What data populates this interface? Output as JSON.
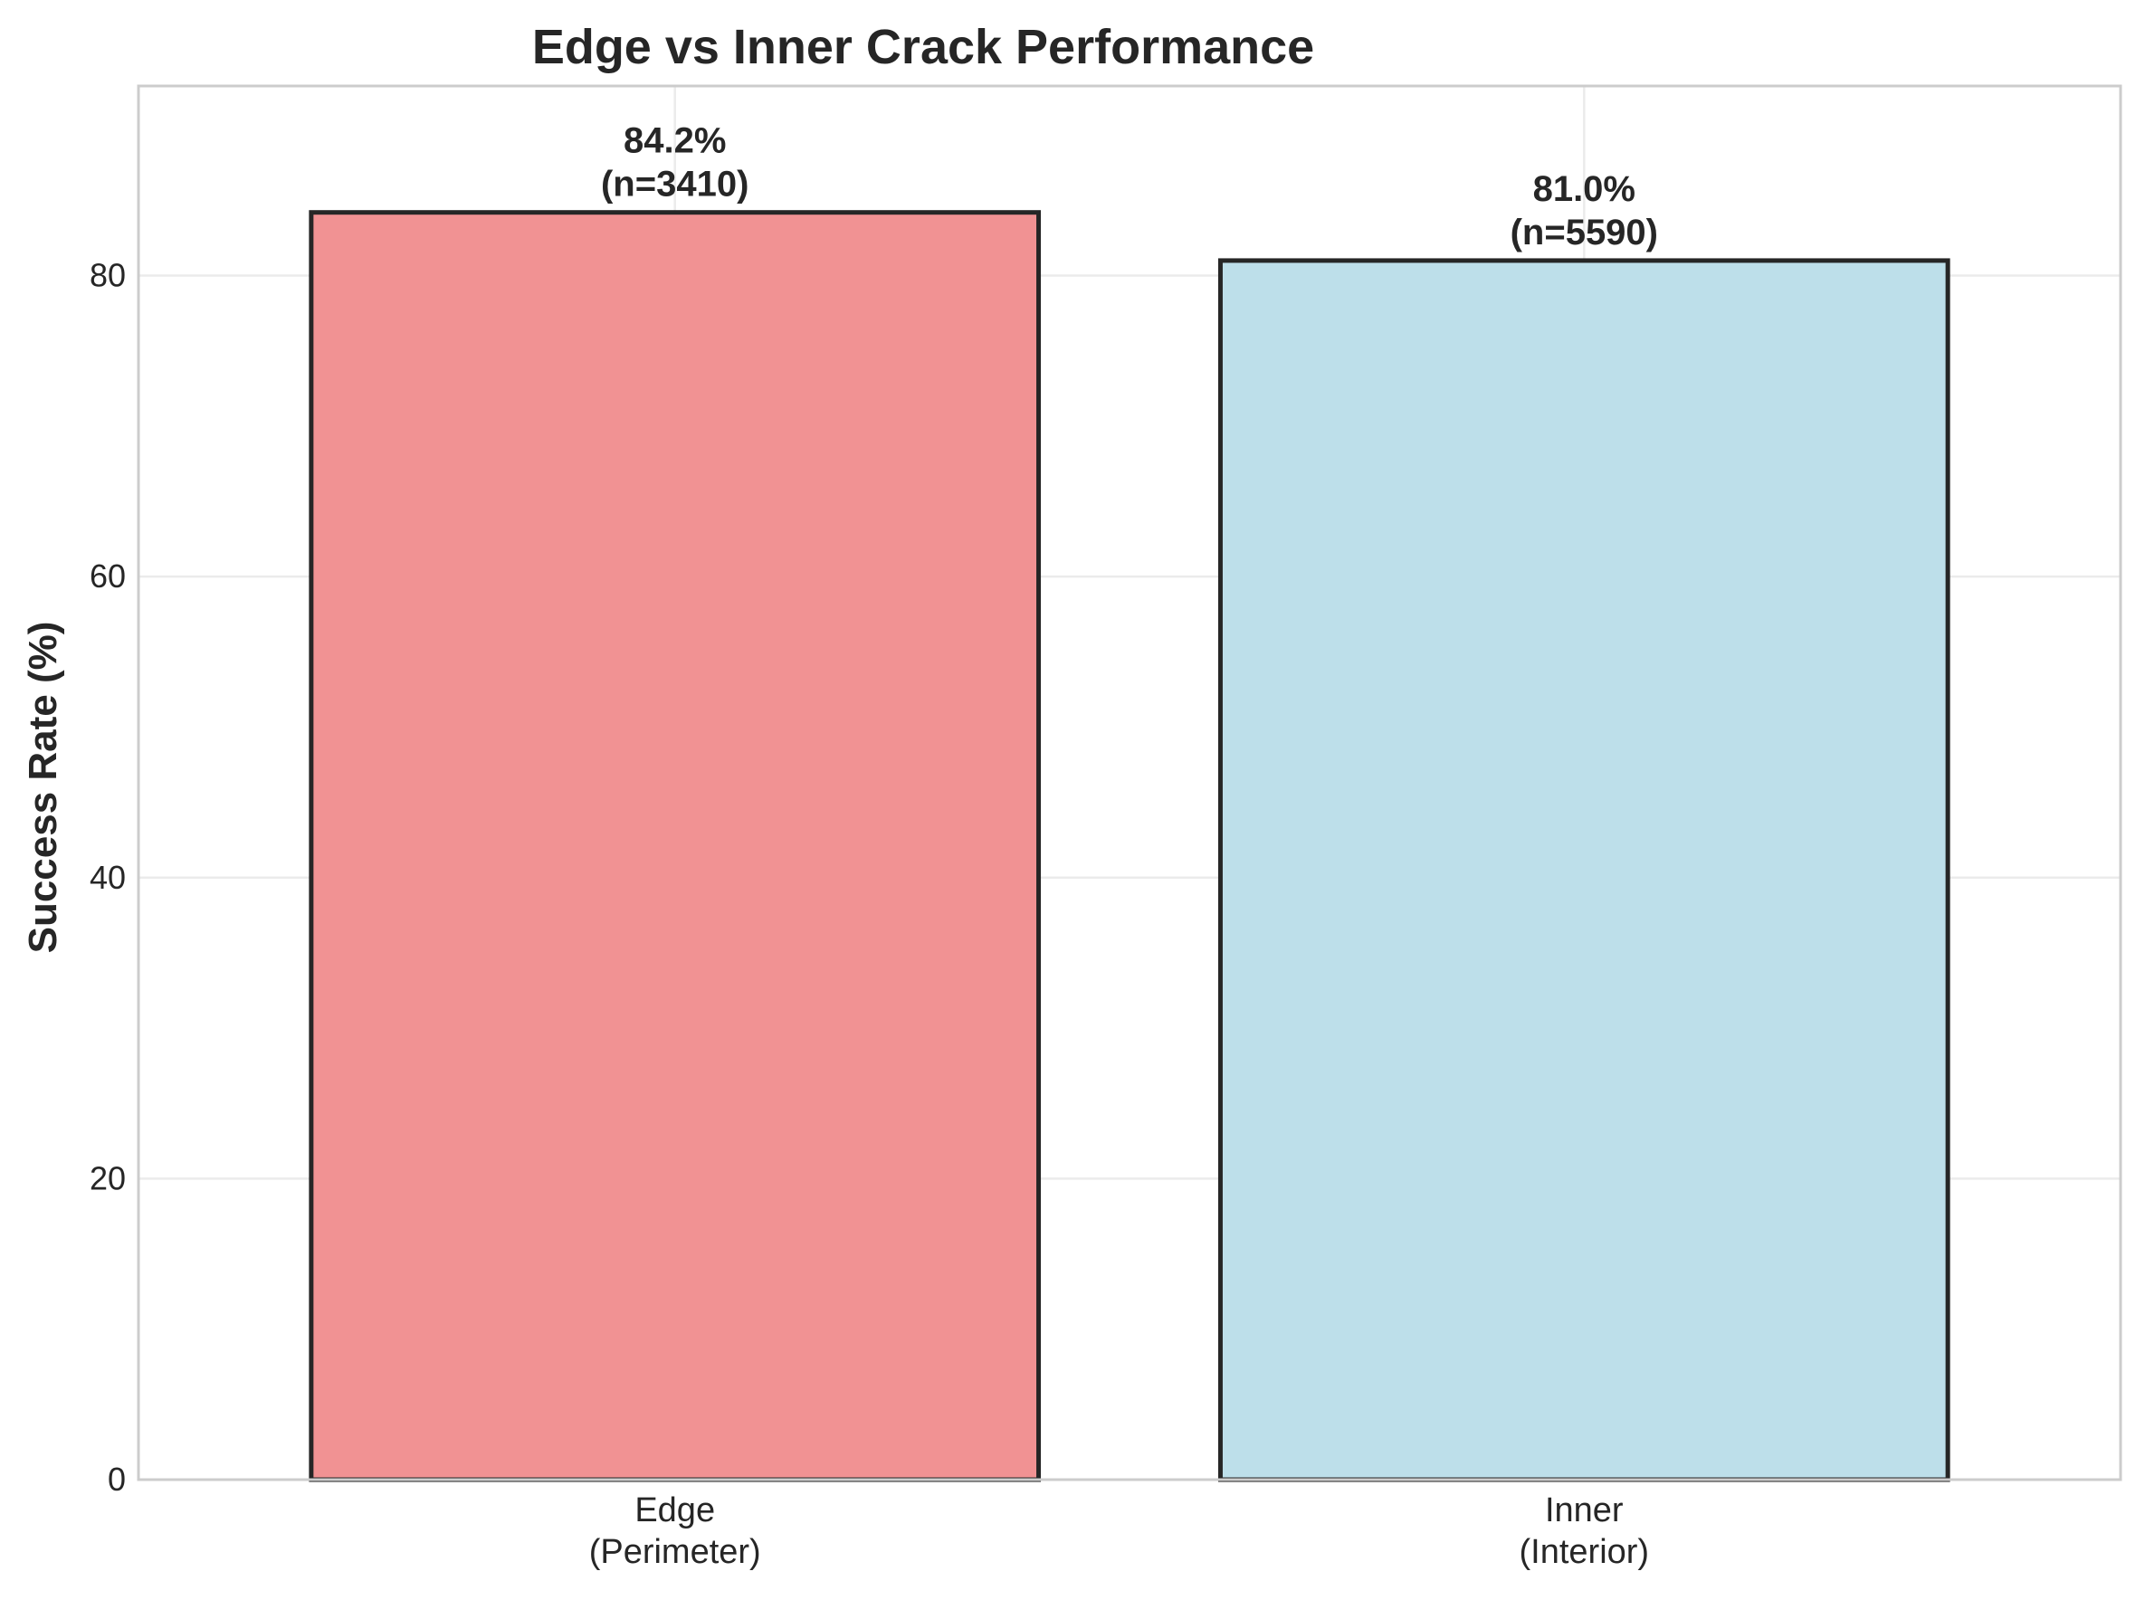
{
  "chart_data": {
    "type": "bar",
    "title": "Edge vs Inner Crack Performance",
    "xlabel": "",
    "ylabel": "Success Rate (%)",
    "ylim": [
      0,
      92.6
    ],
    "yticks": [
      0,
      20,
      40,
      60,
      80
    ],
    "grid": true,
    "categories": [
      [
        "Edge",
        "(Perimeter)"
      ],
      [
        "Inner",
        "(Interior)"
      ]
    ],
    "values": [
      84.2,
      81.0
    ],
    "bar_labels": [
      [
        "84.2%",
        "(n=3410)"
      ],
      [
        "81.0%",
        "(n=5590)"
      ]
    ],
    "colors": [
      "#f19293",
      "#bddfea"
    ],
    "edge_color": "#262626",
    "grid_color": "#ebebeb",
    "axes_color": "#cccccc"
  }
}
